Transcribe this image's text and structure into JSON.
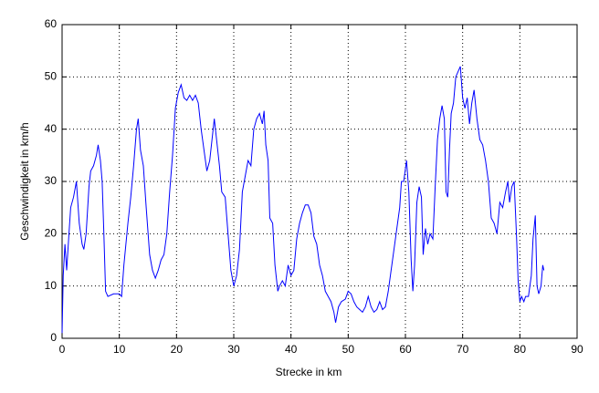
{
  "chart_data": {
    "type": "line",
    "x_label": "Strecke in km",
    "y_label": "Geschwindigkeit in km/h",
    "xlim": [
      0,
      90
    ],
    "ylim": [
      0,
      60
    ],
    "xticks": [
      0,
      10,
      20,
      30,
      40,
      50,
      60,
      70,
      80,
      90
    ],
    "yticks": [
      0,
      10,
      20,
      30,
      40,
      50,
      60
    ],
    "grid": true,
    "series": [
      {
        "color": "#0000ff",
        "x": [
          0,
          0.2,
          0.5,
          0.8,
          1.2,
          1.5,
          2,
          2.5,
          3,
          3.5,
          3.8,
          4.2,
          4.7,
          5,
          5.5,
          6,
          6.3,
          6.7,
          7,
          7.3,
          7.6,
          8,
          9,
          10,
          10.4,
          10.8,
          11.5,
          12,
          12.5,
          13,
          13.3,
          13.7,
          14.2,
          14.7,
          15.3,
          15.8,
          16.3,
          16.8,
          17.3,
          17.8,
          18.3,
          18.8,
          19.3,
          19.8,
          20.3,
          20.8,
          21.3,
          21.8,
          22.3,
          22.8,
          23.3,
          23.8,
          24.3,
          24.8,
          25.3,
          25.8,
          26.3,
          26.6,
          27,
          27.5,
          27.9,
          28.5,
          29,
          29.5,
          30,
          30.5,
          31,
          31.5,
          32,
          32.5,
          33,
          33.5,
          34,
          34.5,
          35,
          35.3,
          35.6,
          36,
          36.3,
          36.8,
          37.2,
          37.7,
          38,
          38.5,
          39,
          39.5,
          40,
          40.5,
          41,
          41.5,
          42,
          42.5,
          43,
          43.5,
          44,
          44.5,
          45,
          45.5,
          46,
          46.5,
          47,
          47.5,
          47.8,
          48.3,
          48.8,
          49.5,
          50,
          50.5,
          51,
          51.5,
          52,
          52.5,
          53,
          53.5,
          54,
          54.5,
          55,
          55.5,
          56,
          56.5,
          57,
          57.5,
          58,
          58.5,
          59,
          59.3,
          59.7,
          60.2,
          60.6,
          61,
          61.3,
          61.6,
          62,
          62.4,
          62.8,
          63.1,
          63.5,
          63.9,
          64.3,
          64.8,
          65.2,
          65.6,
          66,
          66.4,
          66.8,
          67.1,
          67.4,
          67.7,
          68,
          68.4,
          68.8,
          69.2,
          69.6,
          70,
          70.4,
          70.8,
          71.2,
          71.6,
          72,
          72.5,
          73,
          73.5,
          74,
          74.5,
          75,
          75.5,
          76,
          76.5,
          77,
          77.5,
          77.9,
          78.2,
          78.6,
          79,
          79.4,
          79.7,
          80,
          80.3,
          80.7,
          81,
          81.5,
          82,
          82.3,
          82.7,
          83,
          83.3,
          83.7,
          84,
          84.2
        ],
        "values": [
          1,
          12,
          18,
          13,
          20,
          25,
          27,
          30,
          22,
          18,
          17,
          20,
          29,
          32,
          33,
          35,
          37,
          34,
          30,
          20,
          9,
          8,
          8.5,
          8.5,
          8,
          14,
          22,
          27,
          33,
          40,
          42,
          36,
          33,
          25,
          16,
          13,
          11.5,
          13,
          15,
          16,
          20,
          28,
          35,
          44,
          47,
          48.5,
          46,
          45.5,
          46.5,
          45.5,
          46.5,
          45,
          40,
          36,
          32,
          34,
          39,
          42,
          38,
          33,
          28,
          27,
          20,
          13,
          10,
          12,
          17,
          28,
          31,
          34,
          33,
          40,
          42,
          43,
          41,
          43.5,
          37,
          34,
          23,
          22,
          14,
          9,
          10,
          11,
          10,
          14,
          12,
          13,
          19,
          22,
          24,
          25.5,
          25.5,
          24,
          19.5,
          18,
          14,
          12,
          9,
          8,
          7,
          5,
          3,
          6,
          7,
          7.5,
          9,
          8.5,
          7,
          6,
          5.5,
          5,
          6,
          8,
          6,
          5,
          5.5,
          7,
          5.5,
          6,
          9,
          13,
          17,
          21,
          25,
          30,
          30,
          34,
          28,
          15,
          9,
          14,
          26,
          29,
          27,
          16,
          21,
          18,
          20,
          19,
          29,
          38,
          42,
          44.5,
          42,
          28,
          27,
          36,
          43,
          45,
          50,
          51,
          52,
          46,
          44,
          46,
          41,
          45,
          47.5,
          42,
          38,
          37,
          34,
          30,
          23,
          22,
          20,
          26,
          25,
          28,
          30,
          26,
          29,
          30,
          20,
          11,
          7,
          8,
          7,
          8,
          8,
          12,
          19,
          23.5,
          10,
          8.5,
          10,
          14,
          13
        ]
      }
    ]
  }
}
